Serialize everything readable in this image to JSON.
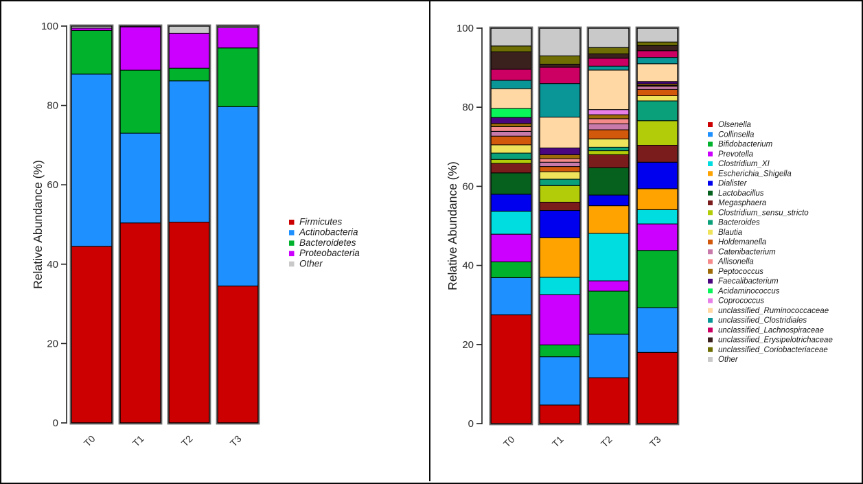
{
  "figure": {
    "description": "Two stacked relative-abundance barplots (phylum level and genus level) for timepoints T0-T3"
  },
  "chart_data": [
    {
      "type": "bar",
      "stacked": true,
      "panel": "left",
      "title": "",
      "xlabel": "",
      "ylabel": "Relative Abundance (%)",
      "ylim": [
        0,
        100
      ],
      "y_ticks": [
        0,
        20,
        40,
        60,
        80,
        100
      ],
      "grid": false,
      "legend_position": "right",
      "categories": [
        "T0",
        "T1",
        "T2",
        "T3"
      ],
      "series": [
        {
          "name": "Firmicutes",
          "color": "#CC0000",
          "values": [
            44.5,
            50.4,
            50.6,
            34.5
          ]
        },
        {
          "name": "Actinobacteria",
          "color": "#1E90FF",
          "values": [
            43.4,
            22.6,
            35.6,
            45.2
          ]
        },
        {
          "name": "Bacteroidetes",
          "color": "#00B22C",
          "values": [
            11.0,
            15.9,
            3.2,
            14.8
          ]
        },
        {
          "name": "Proteobacteria",
          "color": "#CC00FF",
          "values": [
            0.6,
            10.9,
            8.8,
            5.1
          ]
        },
        {
          "name": "Other",
          "color": "#C9C9C9",
          "values": [
            0.5,
            0.2,
            1.8,
            0.4
          ]
        }
      ]
    },
    {
      "type": "bar",
      "stacked": true,
      "panel": "right",
      "title": "",
      "xlabel": "",
      "ylabel": "Relative Abundance (%)",
      "ylim": [
        0,
        100
      ],
      "y_ticks": [
        0,
        20,
        40,
        60,
        80,
        100
      ],
      "grid": false,
      "legend_position": "right",
      "categories": [
        "T0",
        "T1",
        "T2",
        "T3"
      ],
      "series": [
        {
          "name": "Olsenella",
          "color": "#CC0000",
          "values": [
            27.5,
            4.7,
            11.6,
            18.0
          ]
        },
        {
          "name": "Collinsella",
          "color": "#1E90FF",
          "values": [
            9.4,
            12.2,
            11.0,
            11.3
          ]
        },
        {
          "name": "Bifidobacterium",
          "color": "#00B22C",
          "values": [
            4.0,
            3.0,
            10.9,
            14.5
          ]
        },
        {
          "name": "Prevotella",
          "color": "#CC00FF",
          "values": [
            7.0,
            12.7,
            2.6,
            6.7
          ]
        },
        {
          "name": "Clostridium_XI",
          "color": "#00DDE0",
          "values": [
            5.8,
            4.4,
            12.0,
            3.6
          ]
        },
        {
          "name": "Escherichia_Shigella",
          "color": "#FFA300",
          "values": [
            0,
            10.0,
            7.0,
            5.3
          ]
        },
        {
          "name": "Dialister",
          "color": "#0000EE",
          "values": [
            4.3,
            6.9,
            2.7,
            6.7
          ]
        },
        {
          "name": "Lactobacillus",
          "color": "#06611E",
          "values": [
            5.4,
            0,
            6.9,
            0
          ]
        },
        {
          "name": "Megasphaera",
          "color": "#7A1C1C",
          "values": [
            2.4,
            2.1,
            3.3,
            4.3
          ]
        },
        {
          "name": "Clostridium_sensu_stricto",
          "color": "#B2CC09",
          "values": [
            1.0,
            4.2,
            1.0,
            6.2
          ]
        },
        {
          "name": "Bacteroides",
          "color": "#0AA07A",
          "values": [
            1.6,
            1.6,
            0.9,
            5.0
          ]
        },
        {
          "name": "Blautia",
          "color": "#EFE35C",
          "values": [
            2.1,
            1.9,
            2.1,
            1.3
          ]
        },
        {
          "name": "Holdemanella",
          "color": "#D2590B",
          "values": [
            2.2,
            1.3,
            2.3,
            1.6
          ]
        },
        {
          "name": "Catenibacterium",
          "color": "#C87BAB",
          "values": [
            1.2,
            1.1,
            1.5,
            0.7
          ]
        },
        {
          "name": "Allisonella",
          "color": "#F58A8A",
          "values": [
            1.2,
            0.9,
            1.3,
            0.3
          ]
        },
        {
          "name": "Peptococcus",
          "color": "#9E6B09",
          "values": [
            0.8,
            1.0,
            1.0,
            0.4
          ]
        },
        {
          "name": "Faecalibacterium",
          "color": "#49067E",
          "values": [
            1.5,
            1.7,
            0,
            0.6
          ]
        },
        {
          "name": "Acidaminococcus",
          "color": "#0AF559",
          "values": [
            2.3,
            0,
            0,
            0
          ]
        },
        {
          "name": "Coprococcus",
          "color": "#E87FE8",
          "values": [
            0,
            0,
            1.3,
            0
          ]
        },
        {
          "name": "unclassified_Ruminococcaceae",
          "color": "#FFD8A3",
          "values": [
            5.0,
            7.8,
            10.0,
            4.5
          ]
        },
        {
          "name": "unclassified_Clostridiales",
          "color": "#0A9696",
          "values": [
            2.1,
            8.5,
            1.0,
            1.6
          ]
        },
        {
          "name": "unclassified_Lachnospiraceae",
          "color": "#CC0063",
          "values": [
            2.8,
            4.1,
            2.0,
            1.7
          ]
        },
        {
          "name": "unclassified_Erysipelotrichaceae",
          "color": "#3A211D",
          "values": [
            4.4,
            0.8,
            1.1,
            1.3
          ]
        },
        {
          "name": "unclassified_Coriobacteriaceae",
          "color": "#6E6E05",
          "values": [
            1.5,
            2.1,
            1.6,
            0.9
          ]
        },
        {
          "name": "Other",
          "color": "#C9C9C9",
          "values": [
            4.5,
            7.0,
            4.9,
            3.5
          ]
        }
      ]
    }
  ]
}
